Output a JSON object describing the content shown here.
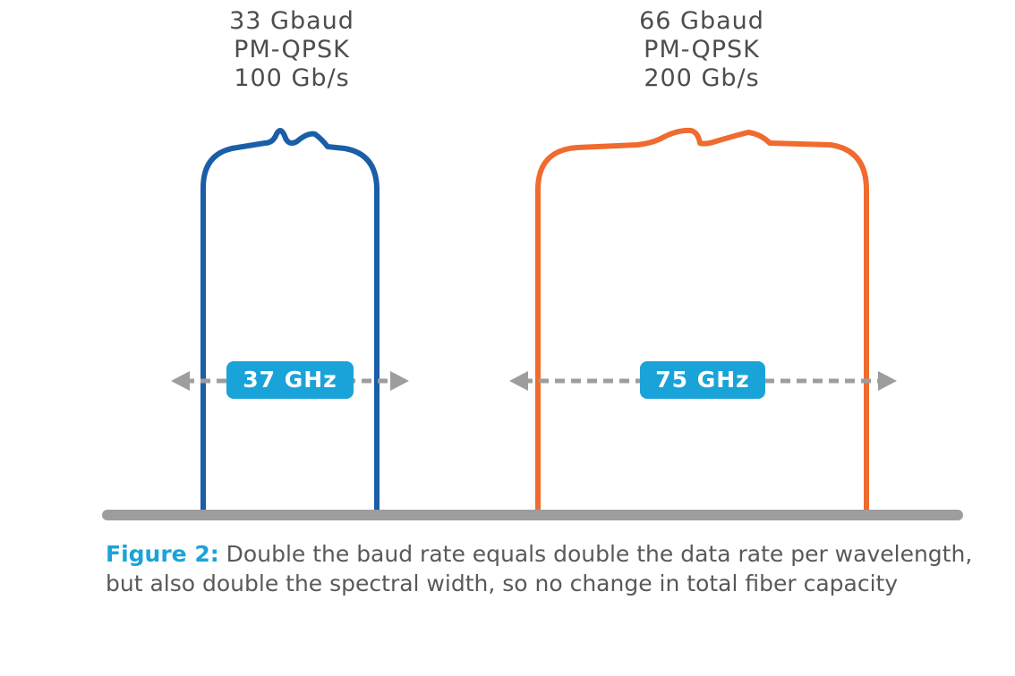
{
  "channels": [
    {
      "baud": "33 Gbaud",
      "modulation": "PM-QPSK",
      "rate": "100 Gb/s",
      "bandwidth": "37 GHz",
      "color": "#1b5ea8"
    },
    {
      "baud": "66 Gbaud",
      "modulation": "PM-QPSK",
      "rate": "200 Gb/s",
      "bandwidth": "75 GHz",
      "color": "#ef6b2e"
    }
  ],
  "caption": {
    "prefix": "Figure 2:",
    "text": " Double the baud rate equals double the data rate per wavelength, but also double the spectral width, so no change in total fiber capacity"
  },
  "colors": {
    "pill": "#1aa3d8",
    "arrow": "#9d9d9f",
    "baseline": "#9d9d9f"
  }
}
